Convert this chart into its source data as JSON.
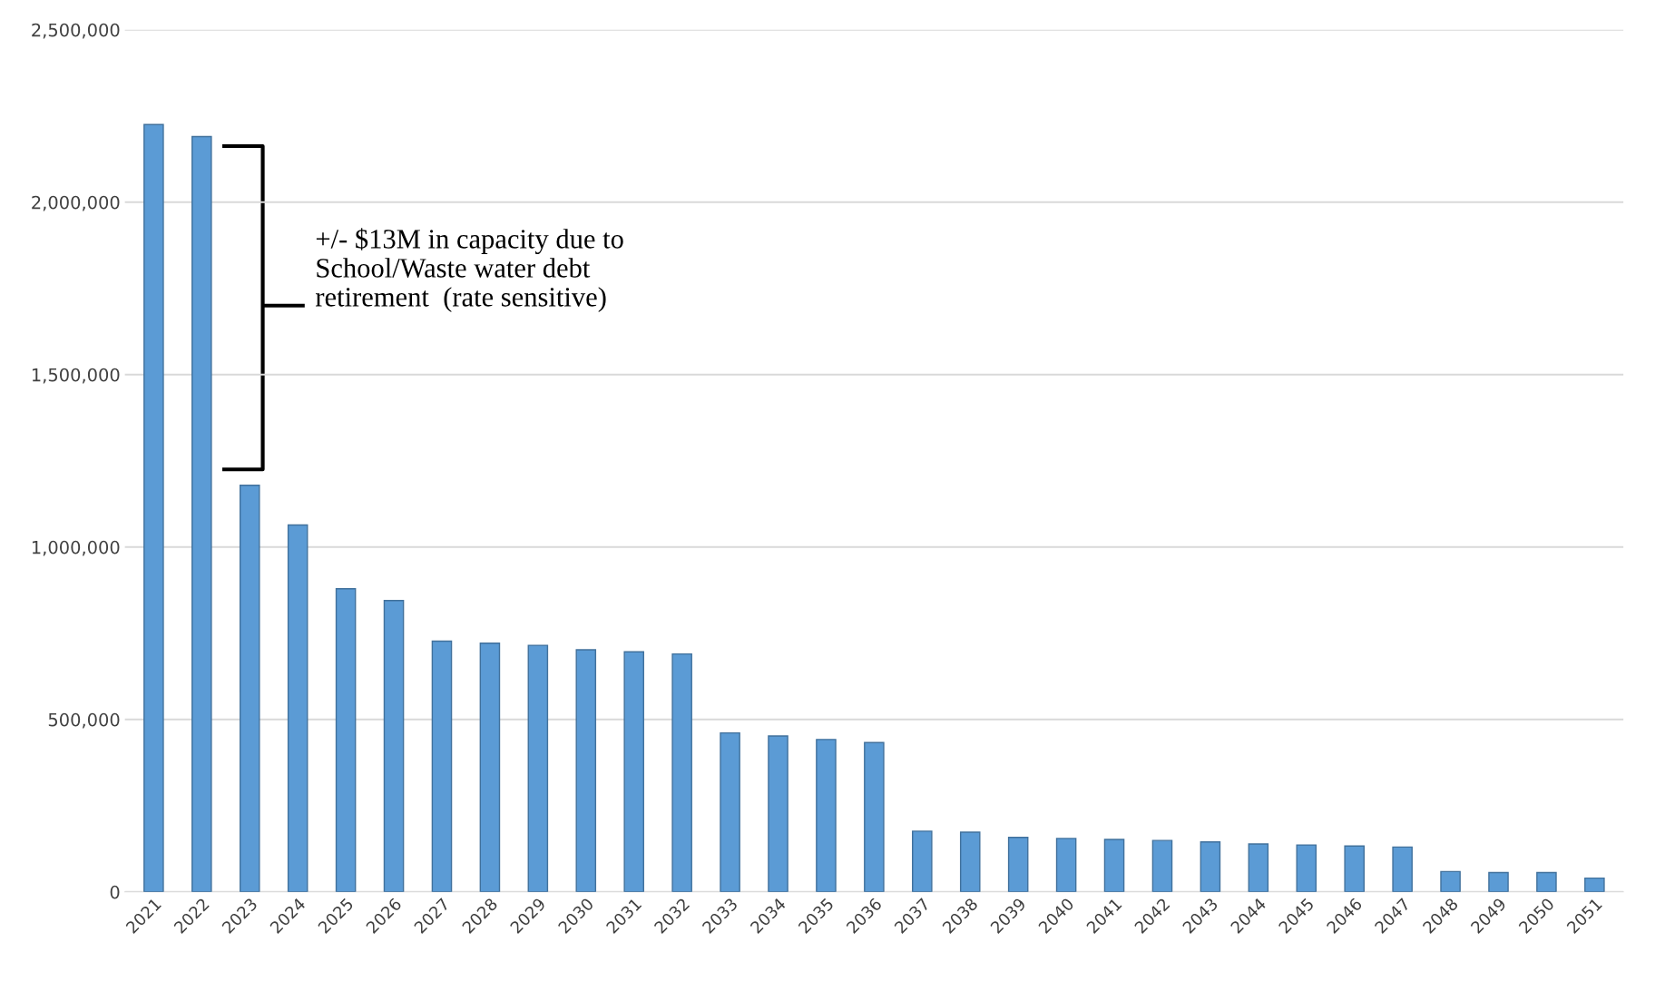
{
  "chart_data": {
    "type": "bar",
    "categories": [
      "2021",
      "2022",
      "2023",
      "2024",
      "2025",
      "2026",
      "2027",
      "2028",
      "2029",
      "2030",
      "2031",
      "2032",
      "2033",
      "2034",
      "2035",
      "2036",
      "2037",
      "2038",
      "2039",
      "2040",
      "2041",
      "2042",
      "2043",
      "2044",
      "2045",
      "2046",
      "2047",
      "2048",
      "2049",
      "2050",
      "2051"
    ],
    "values": [
      2225000,
      2190000,
      1179000,
      1064000,
      879000,
      845000,
      727000,
      721000,
      715000,
      702000,
      696000,
      690000,
      461000,
      452000,
      442000,
      433000,
      176000,
      173000,
      158000,
      155000,
      152000,
      149000,
      145000,
      139000,
      136000,
      133000,
      130000,
      59000,
      56000,
      56000,
      40000
    ],
    "color": "#5b9bd5",
    "ylim": [
      0,
      2500000
    ],
    "yticks": [
      {
        "value": 0,
        "label": "0"
      },
      {
        "value": 500000,
        "label": "500,000"
      },
      {
        "value": 1000000,
        "label": "1,000,000"
      },
      {
        "value": 1500000,
        "label": "1,500,000"
      },
      {
        "value": 2000000,
        "label": "2,000,000"
      },
      {
        "value": 2500000,
        "label": "2,500,000"
      }
    ],
    "grid": "y",
    "annotations": [
      "+/- $13M in capacity due to\nSchool/Waste water debt\nretirement  (rate sensitive)"
    ]
  }
}
